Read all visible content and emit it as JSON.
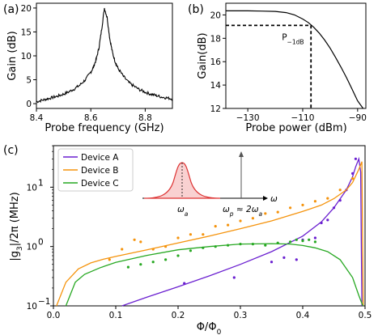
{
  "chart_data": [
    {
      "panel": "a",
      "type": "line",
      "panel_label": "(a)",
      "xlabel": "Probe frequency (GHz)",
      "ylabel": "Gain (dB)",
      "xlim": [
        8.4,
        8.9
      ],
      "ylim": [
        -1,
        21
      ],
      "xticks": [
        8.4,
        8.6,
        8.8
      ],
      "xtick_labels": [
        "8.4",
        "8.6",
        "8.8"
      ],
      "yticks": [
        0,
        5,
        10,
        15,
        20
      ],
      "ytick_labels": [
        "0",
        "5",
        "10",
        "15",
        "20"
      ],
      "series": [
        {
          "color": "#000000",
          "x": [
            8.4,
            8.42,
            8.44,
            8.46,
            8.48,
            8.5,
            8.52,
            8.54,
            8.56,
            8.58,
            8.6,
            8.61,
            8.62,
            8.63,
            8.64,
            8.65,
            8.66,
            8.67,
            8.68,
            8.69,
            8.7,
            8.72,
            8.74,
            8.76,
            8.78,
            8.8,
            8.82,
            8.84,
            8.86,
            8.88,
            8.9
          ],
          "y": [
            0.4,
            0.7,
            1.0,
            1.3,
            1.6,
            2.0,
            2.5,
            3.1,
            3.9,
            5.0,
            6.6,
            7.7,
            9.3,
            11.7,
            15.6,
            20.0,
            18.0,
            13.5,
            10.6,
            8.7,
            7.4,
            5.7,
            4.4,
            3.6,
            2.9,
            2.4,
            2.0,
            1.7,
            1.4,
            1.2,
            1.0
          ]
        }
      ]
    },
    {
      "panel": "b",
      "type": "line",
      "panel_label": "(b)",
      "xlabel": "Probe power (dBm)",
      "ylabel": "Gain(dB)",
      "xlim": [
        -138,
        -87
      ],
      "ylim": [
        12,
        21
      ],
      "xticks": [
        -130,
        -110,
        -90
      ],
      "xtick_labels": [
        "−130",
        "−110",
        "−90"
      ],
      "yticks": [
        12,
        14,
        16,
        18,
        20
      ],
      "ytick_labels": [
        "12",
        "14",
        "16",
        "18",
        "20"
      ],
      "annotation": "P",
      "annotation_subscript": "−1dB",
      "p1db_point": [
        -107,
        19.1
      ],
      "series": [
        {
          "color": "#000000",
          "x": [
            -138,
            -130,
            -125,
            -120,
            -116,
            -113,
            -110,
            -108,
            -106,
            -104,
            -102,
            -100,
            -98,
            -96,
            -94,
            -92,
            -90,
            -88
          ],
          "y": [
            20.35,
            20.35,
            20.33,
            20.3,
            20.2,
            20.0,
            19.65,
            19.35,
            18.95,
            18.45,
            17.85,
            17.15,
            16.35,
            15.5,
            14.6,
            13.65,
            12.65,
            11.6
          ]
        }
      ]
    },
    {
      "panel": "c",
      "type": "line",
      "panel_label": "(c)",
      "xlabel": "Φ/Φ",
      "xlabel_subscript": "0",
      "ylabel": "|g",
      "ylabel_subscript": "3",
      "ylabel_rest": "|/2π (MHz)",
      "xlim": [
        0.0,
        0.5
      ],
      "ylim_log10": [
        -1,
        1.7
      ],
      "xticks": [
        0.0,
        0.1,
        0.2,
        0.3,
        0.4,
        0.5
      ],
      "xtick_labels": [
        "0.0",
        "0.1",
        "0.2",
        "0.3",
        "0.4",
        "0.5"
      ],
      "yticks_log10": [
        -1,
        0,
        1
      ],
      "ytick_base": "10",
      "ytick_exponents": [
        "−1",
        "0",
        "1"
      ],
      "legend_position": "top-left",
      "inset": {
        "omega_axis_label": "ω",
        "omega_a_label": "ω",
        "omega_a_subscript": "a",
        "omega_p_label": "ω",
        "omega_p_subscript": "p",
        "omega_p_relation": " ≈ 2ω",
        "omega_p_relation_subscript": "a"
      },
      "series": [
        {
          "name": "Device A",
          "color": "#6a1fd0",
          "x": [
            0.11,
            0.15,
            0.2,
            0.25,
            0.3,
            0.35,
            0.4,
            0.43,
            0.45,
            0.47,
            0.48,
            0.485,
            0.49,
            0.493,
            0.495
          ],
          "y": [
            0.1,
            0.14,
            0.21,
            0.32,
            0.5,
            0.82,
            1.5,
            2.6,
            4.5,
            9.0,
            15.0,
            22.0,
            30.0,
            18.0,
            0.1
          ],
          "points_x": [
            0.21,
            0.29,
            0.35,
            0.37,
            0.39,
            0.4,
            0.42,
            0.43,
            0.44,
            0.45,
            0.46,
            0.47,
            0.48,
            0.485
          ],
          "points_y": [
            0.24,
            0.3,
            0.55,
            0.65,
            0.6,
            1.3,
            1.4,
            2.5,
            2.8,
            4.5,
            6.0,
            9.0,
            17.0,
            30.0
          ]
        },
        {
          "name": "Device B",
          "color": "#f5930c",
          "x": [
            0.005,
            0.02,
            0.04,
            0.06,
            0.08,
            0.1,
            0.15,
            0.2,
            0.25,
            0.3,
            0.35,
            0.4,
            0.43,
            0.45,
            0.47,
            0.48,
            0.49,
            0.495,
            0.497
          ],
          "y": [
            0.1,
            0.25,
            0.42,
            0.53,
            0.61,
            0.68,
            0.88,
            1.15,
            1.5,
            2.0,
            2.7,
            3.9,
            5.0,
            6.4,
            9.0,
            12.0,
            20.0,
            27.0,
            0.1
          ],
          "points_x": [
            0.09,
            0.11,
            0.13,
            0.14,
            0.16,
            0.18,
            0.2,
            0.22,
            0.24,
            0.26,
            0.28,
            0.3,
            0.32,
            0.34,
            0.36,
            0.38,
            0.4,
            0.42,
            0.44,
            0.46,
            0.48
          ],
          "points_y": [
            0.6,
            0.9,
            1.3,
            1.2,
            0.9,
            1.0,
            1.4,
            1.6,
            1.6,
            2.2,
            2.3,
            2.7,
            3.0,
            3.6,
            3.8,
            4.5,
            5.0,
            5.8,
            6.5,
            9.0,
            14.0
          ]
        },
        {
          "name": "Device C",
          "color": "#27a822",
          "x": [
            0.02,
            0.035,
            0.05,
            0.075,
            0.1,
            0.15,
            0.2,
            0.25,
            0.3,
            0.35,
            0.38,
            0.4,
            0.42,
            0.44,
            0.46,
            0.48,
            0.49,
            0.495,
            0.497
          ],
          "y": [
            0.1,
            0.25,
            0.34,
            0.44,
            0.54,
            0.71,
            0.88,
            1.0,
            1.1,
            1.12,
            1.1,
            1.04,
            0.95,
            0.82,
            0.6,
            0.3,
            0.15,
            0.11,
            0.1
          ],
          "points_x": [
            0.12,
            0.14,
            0.16,
            0.18,
            0.2,
            0.22,
            0.24,
            0.26,
            0.28,
            0.3,
            0.32,
            0.34,
            0.36,
            0.38,
            0.39,
            0.4,
            0.41,
            0.42
          ],
          "points_y": [
            0.45,
            0.5,
            0.55,
            0.6,
            0.7,
            0.85,
            0.95,
            1.0,
            1.05,
            1.1,
            1.1,
            1.05,
            1.15,
            1.2,
            1.3,
            1.25,
            1.3,
            1.2
          ]
        }
      ]
    }
  ]
}
